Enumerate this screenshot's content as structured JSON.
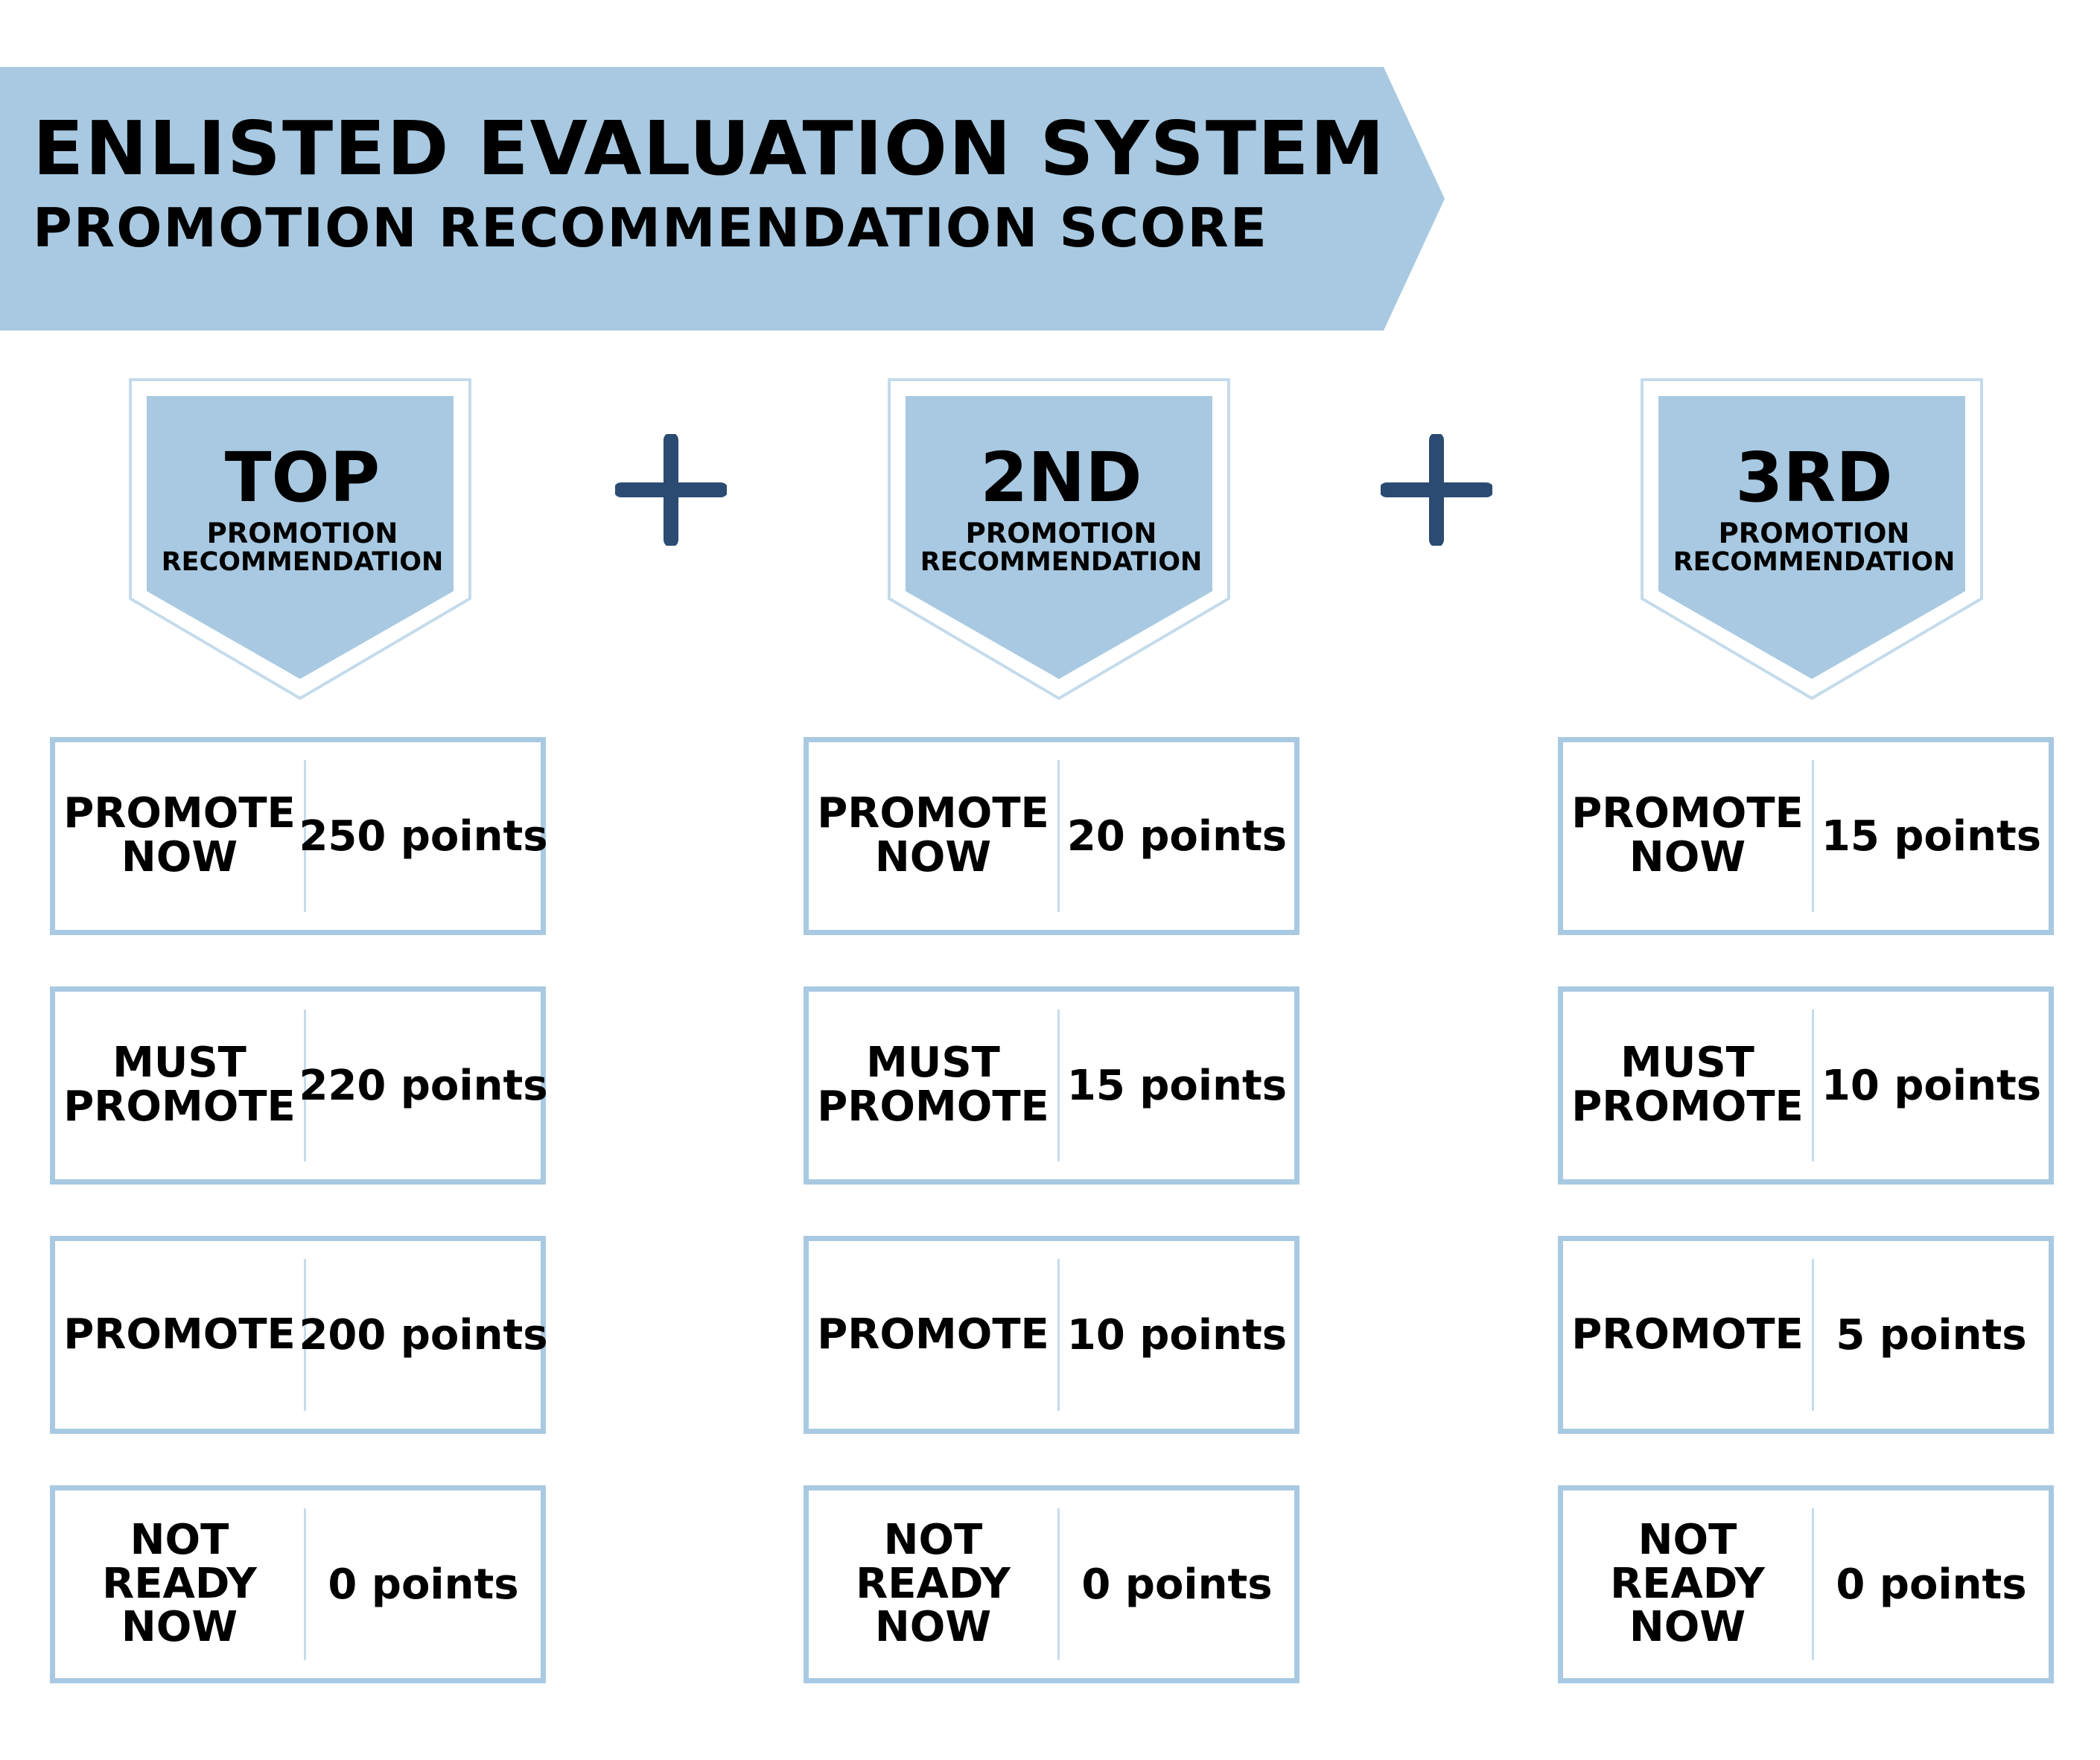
{
  "header": {
    "title": "ENLISTED EVALUATION SYSTEM",
    "subtitle": "PROMOTION RECOMMENDATION SCORE"
  },
  "colors": {
    "banner": "#a8c9e1",
    "plus": "#2b4b72",
    "border": "#a8c9e1"
  },
  "columns": [
    {
      "rank": "TOP",
      "line1": "PROMOTION",
      "line2": "RECOMMENDATION",
      "rows": [
        {
          "label_lines": [
            "PROMOTE",
            "NOW"
          ],
          "points": "250 points"
        },
        {
          "label_lines": [
            "MUST",
            "PROMOTE"
          ],
          "points": "220 points"
        },
        {
          "label_lines": [
            "PROMOTE"
          ],
          "points": "200 points"
        },
        {
          "label_lines": [
            "NOT",
            "READY",
            "NOW"
          ],
          "points": "0 points"
        }
      ]
    },
    {
      "rank": "2ND",
      "line1": "PROMOTION",
      "line2": "RECOMMENDATION",
      "rows": [
        {
          "label_lines": [
            "PROMOTE",
            "NOW"
          ],
          "points": "20 points"
        },
        {
          "label_lines": [
            "MUST",
            "PROMOTE"
          ],
          "points": "15 points"
        },
        {
          "label_lines": [
            "PROMOTE"
          ],
          "points": "10 points"
        },
        {
          "label_lines": [
            "NOT",
            "READY",
            "NOW"
          ],
          "points": "0 points"
        }
      ]
    },
    {
      "rank": "3RD",
      "line1": "PROMOTION",
      "line2": "RECOMMENDATION",
      "rows": [
        {
          "label_lines": [
            "PROMOTE",
            "NOW"
          ],
          "points": "15 points"
        },
        {
          "label_lines": [
            "MUST",
            "PROMOTE"
          ],
          "points": "10 points"
        },
        {
          "label_lines": [
            "PROMOTE"
          ],
          "points": "5 points"
        },
        {
          "label_lines": [
            "NOT",
            "READY",
            "NOW"
          ],
          "points": "0 points"
        }
      ]
    }
  ]
}
